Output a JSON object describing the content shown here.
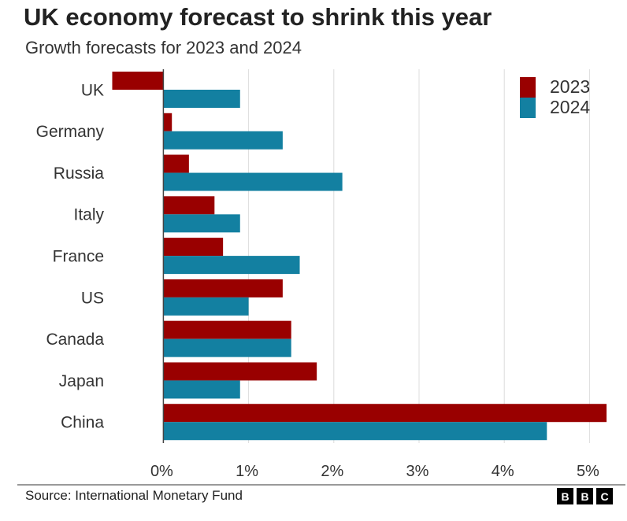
{
  "chart_data": {
    "type": "bar",
    "orientation": "horizontal",
    "title": "UK economy forecast to shrink this year",
    "subtitle": "Growth forecasts for 2023 and 2024",
    "categories": [
      "UK",
      "Germany",
      "Russia",
      "Italy",
      "France",
      "US",
      "Canada",
      "Japan",
      "China"
    ],
    "series": [
      {
        "name": "2023",
        "color": "#990000",
        "values": [
          -0.6,
          0.1,
          0.3,
          0.6,
          0.7,
          1.4,
          1.5,
          1.8,
          5.2
        ]
      },
      {
        "name": "2024",
        "color": "#1380A1",
        "values": [
          0.9,
          1.4,
          2.1,
          0.9,
          1.6,
          1.0,
          1.5,
          0.9,
          4.5
        ]
      }
    ],
    "xlim": [
      -0.6,
      5.3
    ],
    "xticks": [
      0,
      1,
      2,
      3,
      4,
      5
    ],
    "xtick_labels": [
      "0%",
      "1%",
      "2%",
      "3%",
      "4%",
      "5%"
    ],
    "grid": true,
    "legend_position": "top-right"
  },
  "footer": {
    "source": "Source: International Monetary Fund",
    "logo": [
      "B",
      "B",
      "C"
    ]
  }
}
